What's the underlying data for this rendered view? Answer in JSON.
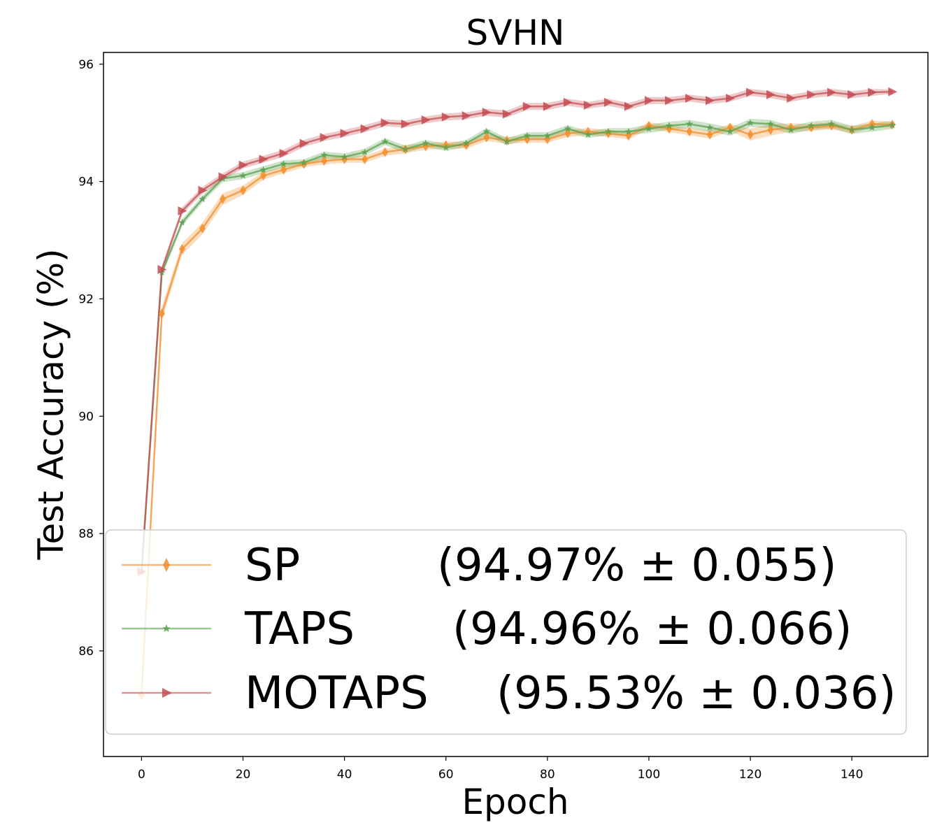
{
  "chart_data": {
    "type": "line",
    "title": "SVHN",
    "xlabel": "Epoch",
    "ylabel": "Test Accuracy (%)",
    "xlim": [
      -7.5,
      155
    ],
    "ylim": [
      84.2,
      96.2
    ],
    "xticks": [
      0,
      20,
      40,
      60,
      80,
      100,
      120,
      140
    ],
    "yticks": [
      86,
      88,
      90,
      92,
      94,
      96
    ],
    "grid": false,
    "legend_position": "lower-right",
    "series": [
      {
        "name": "SP",
        "stat": "(94.97% ± 0.055)",
        "color": "#f28e2b",
        "marker": "diamond",
        "x": [
          0,
          4,
          8,
          12,
          16,
          20,
          24,
          28,
          32,
          36,
          40,
          44,
          48,
          52,
          56,
          60,
          64,
          68,
          72,
          76,
          80,
          84,
          88,
          92,
          96,
          100,
          104,
          108,
          112,
          116,
          120,
          124,
          128,
          132,
          136,
          140,
          144,
          148
        ],
        "values": [
          85.25,
          91.75,
          92.85,
          93.2,
          93.7,
          93.85,
          94.1,
          94.2,
          94.3,
          94.35,
          94.38,
          94.38,
          94.5,
          94.55,
          94.6,
          94.62,
          94.62,
          94.75,
          94.7,
          94.72,
          94.72,
          94.82,
          94.85,
          94.82,
          94.78,
          94.95,
          94.9,
          94.85,
          94.8,
          94.92,
          94.8,
          94.88,
          94.92,
          94.92,
          94.95,
          94.88,
          94.98,
          94.97
        ],
        "band": [
          0.06,
          0.12,
          0.1,
          0.1,
          0.1,
          0.08,
          0.07,
          0.06,
          0.06,
          0.06,
          0.06,
          0.06,
          0.06,
          0.07,
          0.06,
          0.06,
          0.06,
          0.06,
          0.06,
          0.06,
          0.06,
          0.06,
          0.06,
          0.06,
          0.06,
          0.06,
          0.06,
          0.06,
          0.07,
          0.06,
          0.1,
          0.1,
          0.07,
          0.06,
          0.06,
          0.06,
          0.06,
          0.055
        ]
      },
      {
        "name": "TAPS",
        "stat": "(94.96% ± 0.066)",
        "color": "#59a14f",
        "marker": "star",
        "x": [
          0,
          4,
          8,
          12,
          16,
          20,
          24,
          28,
          32,
          36,
          40,
          44,
          48,
          52,
          56,
          60,
          64,
          68,
          72,
          76,
          80,
          84,
          88,
          92,
          96,
          100,
          104,
          108,
          112,
          116,
          120,
          124,
          128,
          132,
          136,
          140,
          144,
          148
        ],
        "values": [
          87.35,
          92.45,
          93.3,
          93.7,
          94.05,
          94.1,
          94.2,
          94.3,
          94.32,
          94.45,
          94.42,
          94.5,
          94.68,
          94.55,
          94.65,
          94.58,
          94.65,
          94.85,
          94.68,
          94.78,
          94.78,
          94.9,
          94.8,
          94.85,
          94.85,
          94.9,
          94.95,
          94.98,
          94.92,
          94.85,
          95.0,
          94.98,
          94.88,
          94.95,
          94.98,
          94.88,
          94.92,
          94.96
        ],
        "band": [
          0.06,
          0.06,
          0.06,
          0.06,
          0.06,
          0.06,
          0.06,
          0.06,
          0.06,
          0.06,
          0.06,
          0.06,
          0.06,
          0.06,
          0.06,
          0.06,
          0.06,
          0.06,
          0.06,
          0.06,
          0.06,
          0.06,
          0.06,
          0.06,
          0.06,
          0.07,
          0.07,
          0.07,
          0.07,
          0.07,
          0.07,
          0.07,
          0.07,
          0.07,
          0.07,
          0.07,
          0.07,
          0.066
        ]
      },
      {
        "name": "MOTAPS",
        "stat": "(95.53% ± 0.036)",
        "color": "#c44e52",
        "marker": "triangle-right",
        "x": [
          0,
          4,
          8,
          12,
          16,
          20,
          24,
          28,
          32,
          36,
          40,
          44,
          48,
          52,
          56,
          60,
          64,
          68,
          72,
          76,
          80,
          84,
          88,
          92,
          96,
          100,
          104,
          108,
          112,
          116,
          120,
          124,
          128,
          132,
          136,
          140,
          144,
          148
        ],
        "values": [
          87.35,
          92.5,
          93.5,
          93.85,
          94.08,
          94.28,
          94.38,
          94.48,
          94.65,
          94.75,
          94.82,
          94.9,
          95.0,
          94.98,
          95.05,
          95.1,
          95.12,
          95.18,
          95.15,
          95.28,
          95.28,
          95.35,
          95.3,
          95.35,
          95.28,
          95.38,
          95.38,
          95.42,
          95.38,
          95.42,
          95.52,
          95.48,
          95.42,
          95.48,
          95.52,
          95.48,
          95.52,
          95.53
        ],
        "band": [
          0.06,
          0.06,
          0.06,
          0.06,
          0.06,
          0.06,
          0.06,
          0.06,
          0.06,
          0.06,
          0.06,
          0.06,
          0.06,
          0.06,
          0.06,
          0.06,
          0.06,
          0.06,
          0.06,
          0.06,
          0.06,
          0.06,
          0.06,
          0.06,
          0.06,
          0.06,
          0.06,
          0.06,
          0.06,
          0.06,
          0.06,
          0.06,
          0.06,
          0.06,
          0.06,
          0.06,
          0.06,
          0.036
        ]
      }
    ]
  }
}
